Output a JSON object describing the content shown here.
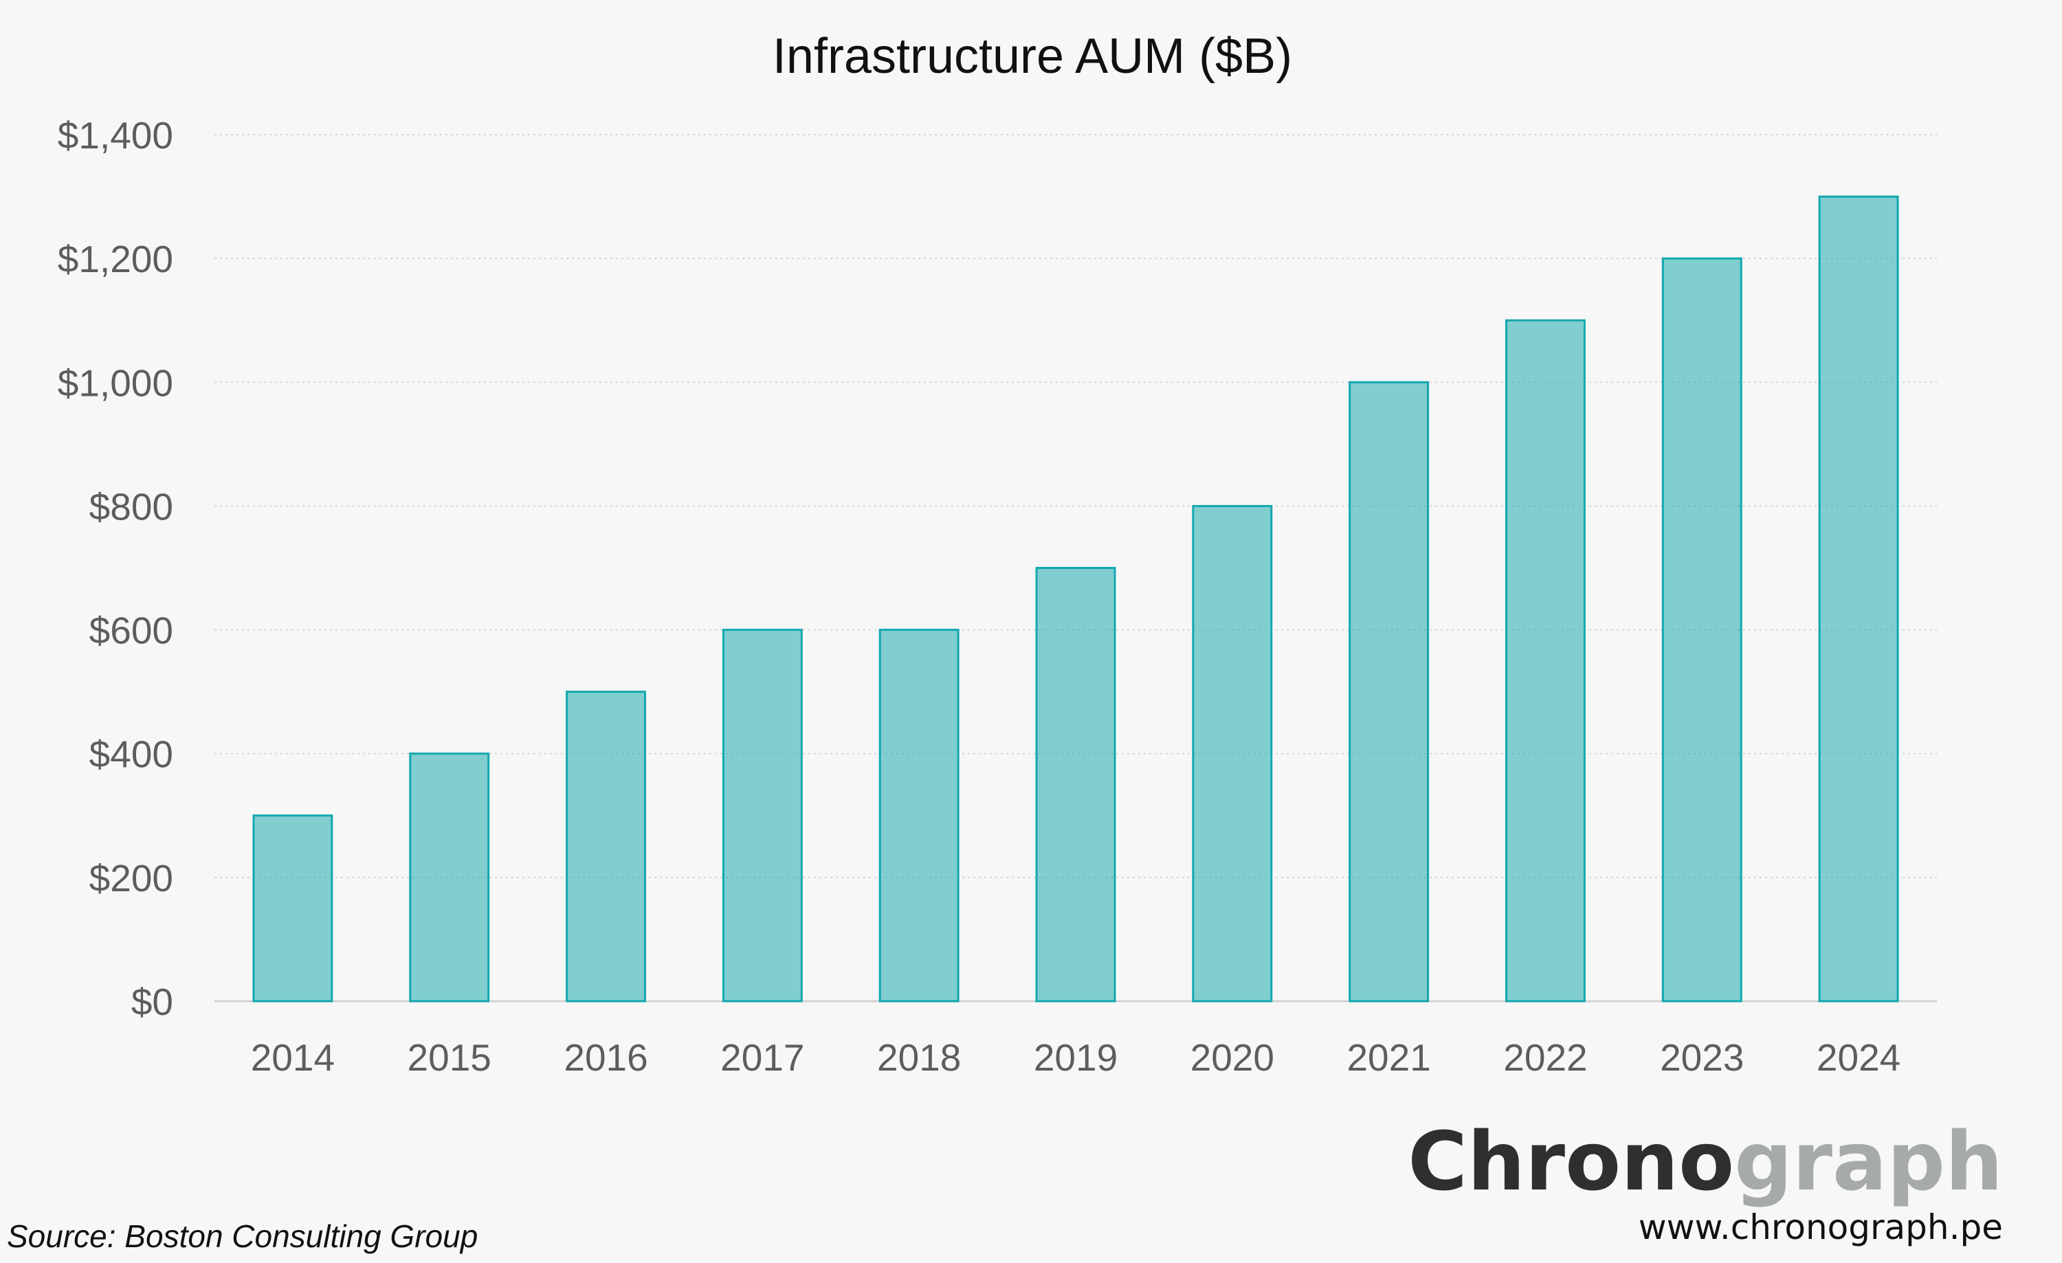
{
  "chart_data": {
    "type": "bar",
    "title": "Infrastructure AUM ($B)",
    "categories": [
      "2014",
      "2015",
      "2016",
      "2017",
      "2018",
      "2019",
      "2020",
      "2021",
      "2022",
      "2023",
      "2024"
    ],
    "values": [
      300,
      400,
      500,
      600,
      600,
      700,
      800,
      1000,
      1100,
      1200,
      1300
    ],
    "ylim": [
      0,
      1400
    ],
    "y_ticks": [
      0,
      200,
      400,
      600,
      800,
      1000,
      1200,
      1400
    ],
    "y_tick_labels": [
      "$0",
      "$200",
      "$400",
      "$600",
      "$800",
      "$1,000",
      "$1,200",
      "$1,400"
    ],
    "grid": true,
    "legend": "none",
    "bar_color": "#13a8ad"
  },
  "source": "Source: Boston Consulting Group",
  "brand": {
    "name_part1": "Chrono",
    "name_part2": "graph",
    "website": "www.chronograph.pe",
    "color_dark": "#2f2f2f",
    "color_light": "#a6aaaa"
  }
}
